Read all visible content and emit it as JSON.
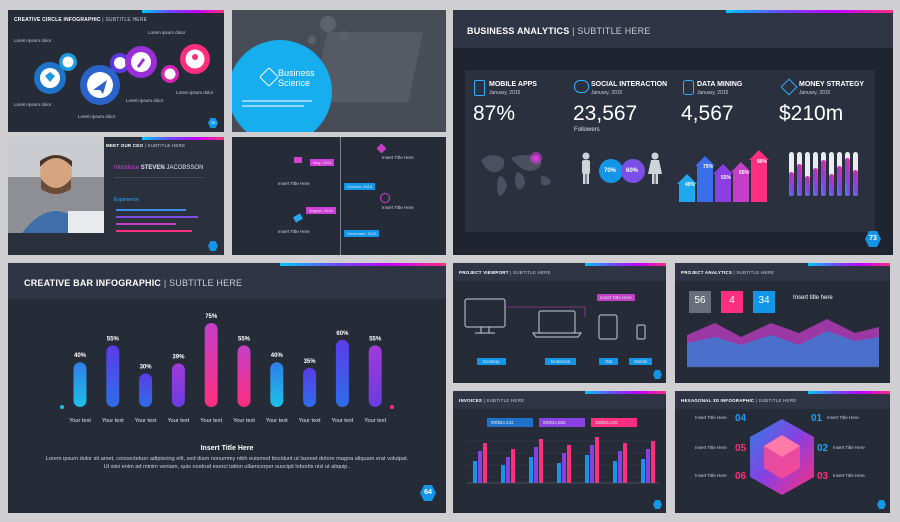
{
  "slide_circle": {
    "title": "CREATIVE CIRCLE INFOGRAPHIC",
    "subtitle": "| SUBTITLE HERE",
    "lorem": "Lorem ipsum dolor",
    "page": "72"
  },
  "slide_photo": {
    "brand_line1": "Business",
    "brand_line2": "Science"
  },
  "slide_ceo": {
    "title": "MEET OUR CEO",
    "subtitle": "| SUBTITLE HERE",
    "intro": "Introduce",
    "name": "STEVEN",
    "surname": "JACOBSSON",
    "section": "Experience"
  },
  "slide_timeline": {
    "events": [
      "May, 2015",
      "October, 2015",
      "August, 2015",
      "December, 2015"
    ],
    "label": "Insert Title Here"
  },
  "slide_analytics": {
    "title": "BUSINESS ANALYTICS",
    "subtitle": "| SUBTITLE HERE",
    "page": "73",
    "date": "January, 2015",
    "cards": [
      {
        "title": "MOBILE APPS",
        "value": "87%",
        "icon": "phone-icon"
      },
      {
        "title": "SOCIAL INTERACTION",
        "value": "23,567",
        "extra": "Followers",
        "icon": "chat-icon"
      },
      {
        "title": "DATA MINING",
        "value": "4,567",
        "icon": "database-icon"
      },
      {
        "title": "MONEY STRATEGY",
        "value": "$210m",
        "icon": "tag-icon"
      }
    ],
    "gender": [
      "70%",
      "60%"
    ],
    "arrows": [
      "40%",
      "75%",
      "55%",
      "65%",
      "80%"
    ]
  },
  "slide_bar": {
    "title": "CREATIVE BAR INFOGRAPHIC",
    "subtitle": "| SUBTITLE HERE",
    "page": "64",
    "insert_title": "Insert Title Here",
    "body": "Lorem ipsum dolor sit amet, consectetuer adipiscing elit, sed diam nonummy nibh euismod tincidunt ut laoreet dolore magna aliquam erat volutpat. Ut wisi enim ad minim veniam, quis nostrud exerci tation ullamcorper suscipit lobortis nisl ut aliquip ."
  },
  "chart_data": {
    "type": "bar",
    "categories": [
      "Your text",
      "Your text",
      "Your text",
      "Your text",
      "Your text",
      "Your text",
      "Your text",
      "Your text",
      "Your text",
      "Your text"
    ],
    "values": [
      40,
      55,
      30,
      39,
      75,
      55,
      40,
      35,
      60,
      55
    ],
    "ylim": [
      0,
      100
    ]
  },
  "slide_viewport": {
    "title": "PROJECT VIEWPORT",
    "subtitle": "| SUBTITLE HERE",
    "devices": [
      "Desktop",
      "Notebook",
      "Tab",
      "Mobile"
    ],
    "note": "Insert Title Here"
  },
  "slide_proj_analytics": {
    "title": "PROJECT ANALYTICS",
    "subtitle": "| SUBTITLE HERE",
    "stats": [
      "56",
      "4",
      "34"
    ],
    "insert": "Insert title here"
  },
  "slide_invoices": {
    "title": "INVOICES",
    "subtitle": "| SUBTITLE HERE",
    "amounts": [
      "99/$63,234",
      "99/$34,655",
      "25/$25,226"
    ]
  },
  "slide_hex": {
    "title": "HEXAGONAL 3D INFOGRAPHIC",
    "subtitle": "| SUBTITLE HERE",
    "numbers": [
      "04",
      "01",
      "05",
      "02",
      "06",
      "03"
    ],
    "label": "Insert Title Here"
  },
  "colors": {
    "bg": "#262b38",
    "accent_blue": "#1496e8",
    "accent_pink": "#ff2e7e",
    "accent_purple": "#9b30ff"
  }
}
